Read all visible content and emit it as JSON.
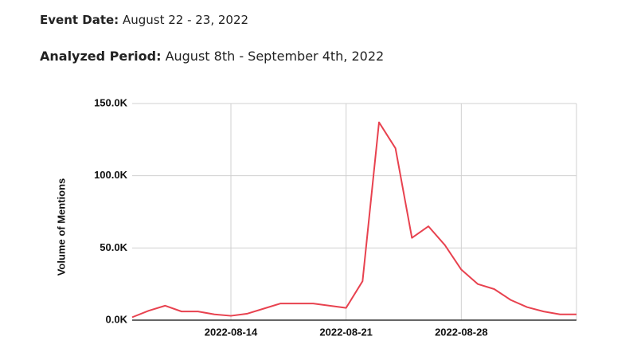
{
  "header": {
    "event_date": {
      "label": "Event Date:",
      "value": "August 22 - 23, 2022"
    },
    "analyzed_period": {
      "label": "Analyzed Period:",
      "value": "August 8th - September 4th, 2022"
    }
  },
  "chart_data": {
    "type": "line",
    "y_label": "Volume of Mentions",
    "x": [
      "2022-08-08",
      "2022-08-09",
      "2022-08-10",
      "2022-08-11",
      "2022-08-12",
      "2022-08-13",
      "2022-08-14",
      "2022-08-15",
      "2022-08-16",
      "2022-08-17",
      "2022-08-18",
      "2022-08-19",
      "2022-08-20",
      "2022-08-21",
      "2022-08-22",
      "2022-08-23",
      "2022-08-24",
      "2022-08-25",
      "2022-08-26",
      "2022-08-27",
      "2022-08-28",
      "2022-08-29",
      "2022-08-30",
      "2022-08-31",
      "2022-09-01",
      "2022-09-02",
      "2022-09-03",
      "2022-09-04"
    ],
    "series": [
      {
        "name": "Volume of Mentions",
        "color": "#e8424f",
        "values": [
          2000,
          6500,
          10000,
          6000,
          6000,
          4000,
          3000,
          4500,
          8000,
          11500,
          11500,
          11500,
          10000,
          8500,
          27000,
          137000,
          119000,
          57000,
          65000,
          52000,
          35000,
          25000,
          21500,
          14000,
          9000,
          6000,
          4000,
          4000
        ]
      }
    ],
    "xlim": [
      "2022-08-08",
      "2022-09-04"
    ],
    "xticks": [
      "2022-08-14",
      "2022-08-21",
      "2022-08-28"
    ],
    "ylim": [
      0,
      150000
    ],
    "yticks": [
      {
        "value": 0,
        "label": "0.0K"
      },
      {
        "value": 50000,
        "label": "50.0K"
      },
      {
        "value": 100000,
        "label": "100.0K"
      },
      {
        "value": 150000,
        "label": "150.0K"
      }
    ],
    "grid": true
  }
}
